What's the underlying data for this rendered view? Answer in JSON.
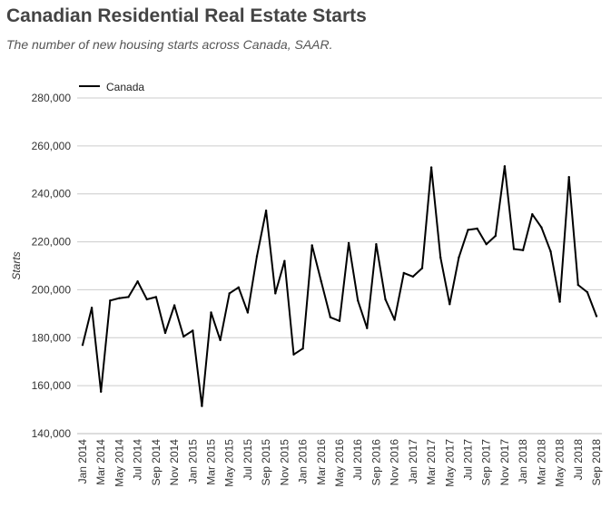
{
  "chart_data": {
    "type": "line",
    "title": "Canadian Residential Real Estate Starts",
    "subtitle": "The number of new housing starts across Canada, SAAR.",
    "ylabel": "Starts",
    "xlabel": "",
    "ylim": [
      140000,
      280000
    ],
    "yticks": [
      140000,
      160000,
      180000,
      200000,
      220000,
      240000,
      260000,
      280000
    ],
    "ytick_labels": [
      "140,000",
      "160,000",
      "180,000",
      "200,000",
      "220,000",
      "240,000",
      "260,000",
      "280,000"
    ],
    "grid": true,
    "legend_position": "top-left",
    "x": [
      "Jan 2014",
      "Feb 2014",
      "Mar 2014",
      "Apr 2014",
      "May 2014",
      "Jun 2014",
      "Jul 2014",
      "Aug 2014",
      "Sep 2014",
      "Oct 2014",
      "Nov 2014",
      "Dec 2014",
      "Jan 2015",
      "Feb 2015",
      "Mar 2015",
      "Apr 2015",
      "May 2015",
      "Jun 2015",
      "Jul 2015",
      "Aug 2015",
      "Sep 2015",
      "Oct 2015",
      "Nov 2015",
      "Dec 2015",
      "Jan 2016",
      "Feb 2016",
      "Mar 2016",
      "Apr 2016",
      "May 2016",
      "Jun 2016",
      "Jul 2016",
      "Aug 2016",
      "Sep 2016",
      "Oct 2016",
      "Nov 2016",
      "Dec 2016",
      "Jan 2017",
      "Feb 2017",
      "Mar 2017",
      "Apr 2017",
      "May 2017",
      "Jun 2017",
      "Jul 2017",
      "Aug 2017",
      "Sep 2017",
      "Oct 2017",
      "Nov 2017",
      "Dec 2017",
      "Jan 2018",
      "Feb 2018",
      "Mar 2018",
      "Apr 2018",
      "May 2018",
      "Jun 2018",
      "Jul 2018",
      "Aug 2018",
      "Sep 2018"
    ],
    "xtick_labels": [
      "Jan 2014",
      "Mar 2014",
      "May 2014",
      "Jul 2014",
      "Sep 2014",
      "Nov 2014",
      "Jan 2015",
      "Mar 2015",
      "May 2015",
      "Jul 2015",
      "Sep 2015",
      "Nov 2015",
      "Jan 2016",
      "Mar 2016",
      "May 2016",
      "Jul 2016",
      "Sep 2016",
      "Nov 2016",
      "Jan 2017",
      "Mar 2017",
      "May 2017",
      "Jul 2017",
      "Sep 2017",
      "Nov 2017",
      "Jan 2018",
      "Mar 2018",
      "May 2018",
      "Jul 2018",
      "Sep 2018"
    ],
    "series": [
      {
        "name": "Canada",
        "color": "#000000",
        "values": [
          177000,
          192500,
          157500,
          195500,
          196500,
          197000,
          203500,
          196000,
          197000,
          182000,
          193500,
          180500,
          183000,
          151500,
          190500,
          179000,
          198500,
          201000,
          190500,
          214000,
          233000,
          198500,
          212000,
          173000,
          175500,
          218500,
          203500,
          188500,
          187000,
          219500,
          195500,
          184000,
          219000,
          196000,
          187500,
          207000,
          205500,
          209000,
          251000,
          213500,
          194000,
          213500,
          225000,
          225500,
          219000,
          222500,
          251500,
          217000,
          216500,
          231500,
          226000,
          216000,
          195000,
          247000,
          202000,
          199000,
          189000
        ]
      }
    ]
  }
}
